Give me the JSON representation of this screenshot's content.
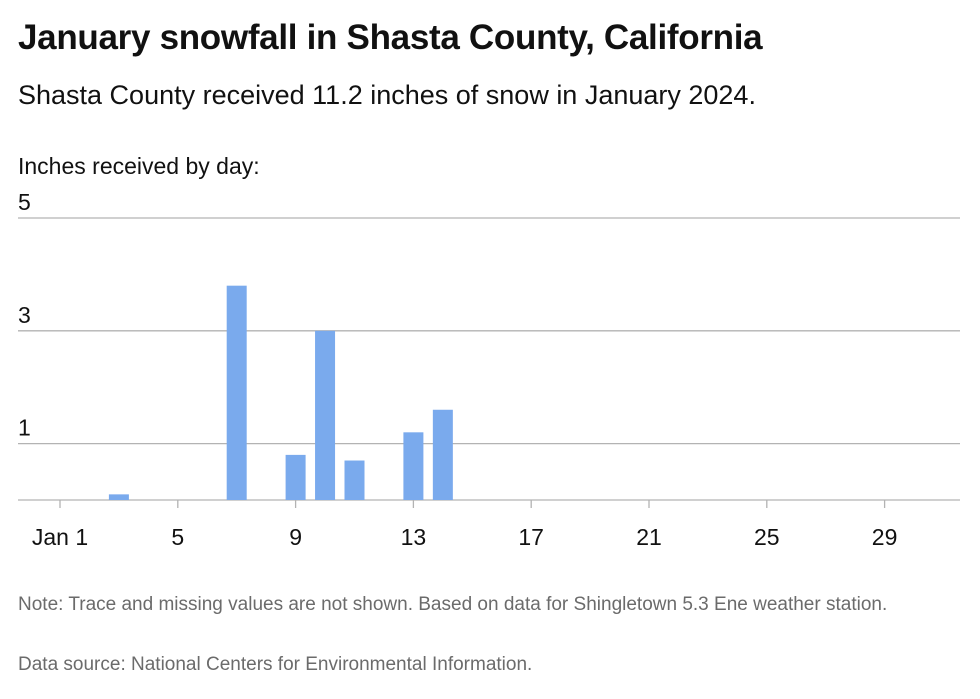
{
  "title": "January snowfall in Shasta County, California",
  "subtitle": "Shasta County received 11.2 inches of snow in January 2024.",
  "footer": {
    "note": "Note: Trace and missing values are not shown. Based on data for Shingletown 5.3 Ene weather station.",
    "source": "Data source: National Centers for Environmental Information."
  },
  "colors": {
    "bar": "#7aaaed",
    "grid": "#b3b3b3",
    "text": "#111111",
    "footnote": "#6b6b6b"
  },
  "chart_data": {
    "type": "bar",
    "title": "January snowfall in Shasta County, California",
    "subtitle": "Shasta County received 11.2 inches of snow in January 2024.",
    "ylabel": "Inches received by day:",
    "xlabel": "",
    "xlim": [
      1,
      31
    ],
    "ylim": [
      0,
      5
    ],
    "y_ticks": [
      1,
      3,
      5
    ],
    "x_ticks": [
      {
        "day": 1,
        "label": "Jan 1"
      },
      {
        "day": 5,
        "label": "5"
      },
      {
        "day": 9,
        "label": "9"
      },
      {
        "day": 13,
        "label": "13"
      },
      {
        "day": 17,
        "label": "17"
      },
      {
        "day": 21,
        "label": "21"
      },
      {
        "day": 25,
        "label": "25"
      },
      {
        "day": 29,
        "label": "29"
      }
    ],
    "grid": "horizontal",
    "points": [
      {
        "day": 3,
        "value": 0.1
      },
      {
        "day": 7,
        "value": 3.8
      },
      {
        "day": 9,
        "value": 0.8
      },
      {
        "day": 10,
        "value": 3.0
      },
      {
        "day": 11,
        "value": 0.7
      },
      {
        "day": 13,
        "value": 1.2
      },
      {
        "day": 14,
        "value": 1.6
      }
    ]
  }
}
